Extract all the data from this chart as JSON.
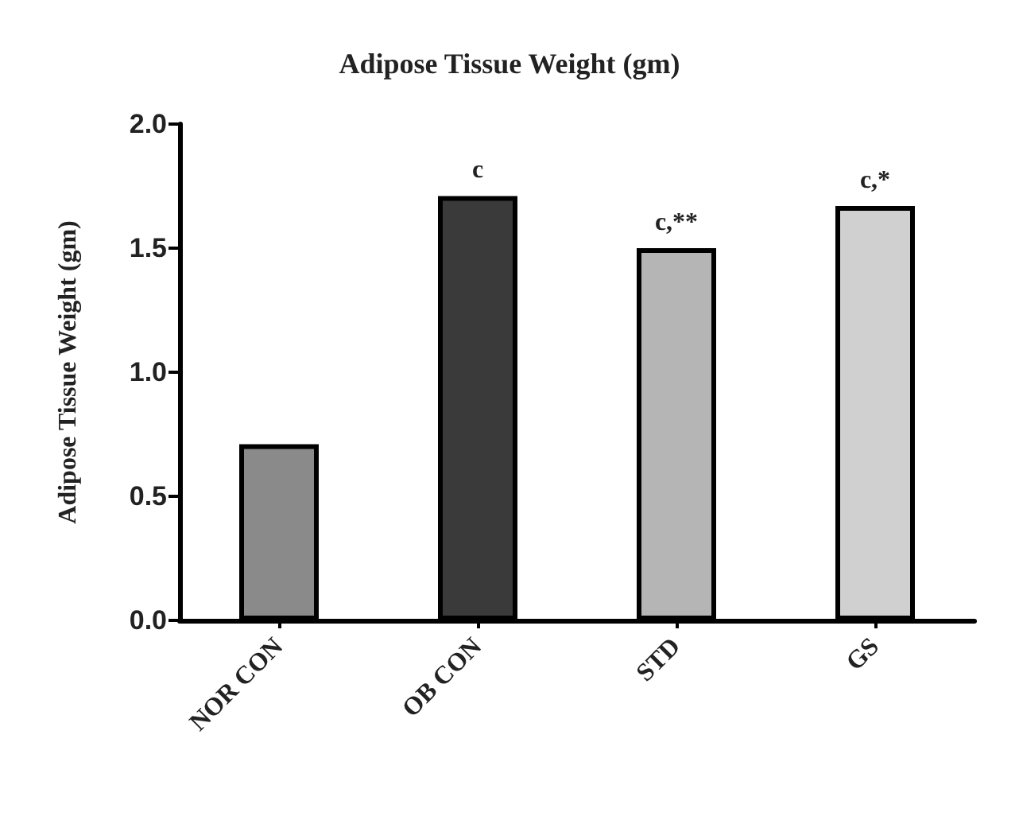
{
  "chart_data": {
    "type": "bar",
    "title": "Adipose Tissue Weight (gm)",
    "ylabel": "Adipose Tissue Weight (gm)",
    "categories": [
      "NOR CON",
      "OB CON",
      "STD",
      "GS"
    ],
    "values": [
      0.71,
      1.71,
      1.5,
      1.67
    ],
    "colors": [
      "#8a8a8a",
      "#3a3a3a",
      "#b5b5b5",
      "#d0d0d0"
    ],
    "ylim": [
      0,
      2
    ],
    "yticks": [
      {
        "value": 0,
        "label": "0.0"
      },
      0.5,
      {
        "value": 1,
        "label": "1.0"
      },
      1.5,
      {
        "value": 2,
        "label": "2.0"
      }
    ],
    "grid": false,
    "annotations": [
      {
        "text": "c",
        "x": "OB CON",
        "y": 1.71
      },
      {
        "text": "c,**",
        "x": "STD",
        "y": 1.5
      },
      {
        "text": "c,*",
        "x": "GS",
        "y": 1.67
      }
    ]
  }
}
